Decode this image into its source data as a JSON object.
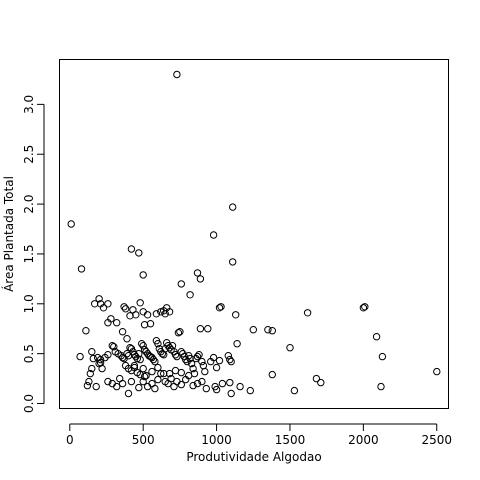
{
  "chart_data": {
    "type": "scatter",
    "title": "",
    "xlabel": "Produtividade Algodao",
    "ylabel": "Área Plantada Total",
    "xlim": [
      -70,
      2580
    ],
    "ylim": [
      -0.05,
      3.45
    ],
    "xticks": [
      0,
      500,
      1000,
      1500,
      2000,
      2500
    ],
    "yticks": [
      0.0,
      0.5,
      1.0,
      1.5,
      2.0,
      2.5,
      3.0
    ],
    "xtick_labels": [
      "0",
      "500",
      "1000",
      "1500",
      "2000",
      "2500"
    ],
    "ytick_labels": [
      "0.0",
      "0.5",
      "1.0",
      "1.5",
      "2.0",
      "2.5",
      "3.0"
    ],
    "grid": false,
    "legend": "none",
    "marker": "open-circle",
    "points": [
      [
        730,
        3.3
      ],
      [
        10,
        1.8
      ],
      [
        1110,
        1.97
      ],
      [
        980,
        1.69
      ],
      [
        420,
        1.55
      ],
      [
        470,
        1.51
      ],
      [
        1110,
        1.42
      ],
      [
        80,
        1.35
      ],
      [
        500,
        1.29
      ],
      [
        870,
        1.31
      ],
      [
        760,
        1.2
      ],
      [
        890,
        1.25
      ],
      [
        200,
        1.05
      ],
      [
        210,
        1.0
      ],
      [
        230,
        0.96
      ],
      [
        260,
        1.0
      ],
      [
        170,
        1.0
      ],
      [
        480,
        1.01
      ],
      [
        430,
        0.94
      ],
      [
        380,
        0.95
      ],
      [
        370,
        0.97
      ],
      [
        320,
        0.81
      ],
      [
        500,
        0.92
      ],
      [
        530,
        0.89
      ],
      [
        590,
        0.9
      ],
      [
        620,
        0.92
      ],
      [
        640,
        0.93
      ],
      [
        660,
        0.96
      ],
      [
        650,
        0.9
      ],
      [
        680,
        0.92
      ],
      [
        410,
        0.88
      ],
      [
        450,
        0.89
      ],
      [
        280,
        0.85
      ],
      [
        260,
        0.81
      ],
      [
        510,
        0.79
      ],
      [
        550,
        0.8
      ],
      [
        820,
        1.09
      ],
      [
        1030,
        0.97
      ],
      [
        1020,
        0.96
      ],
      [
        1130,
        0.89
      ],
      [
        2010,
        0.97
      ],
      [
        2000,
        0.96
      ],
      [
        1620,
        0.91
      ],
      [
        1350,
        0.74
      ],
      [
        1380,
        0.73
      ],
      [
        1250,
        0.74
      ],
      [
        2090,
        0.67
      ],
      [
        2130,
        0.47
      ],
      [
        1500,
        0.56
      ],
      [
        1140,
        0.6
      ],
      [
        110,
        0.73
      ],
      [
        70,
        0.47
      ],
      [
        150,
        0.52
      ],
      [
        160,
        0.45
      ],
      [
        190,
        0.46
      ],
      [
        210,
        0.44
      ],
      [
        210,
        0.41
      ],
      [
        200,
        0.4
      ],
      [
        220,
        0.35
      ],
      [
        240,
        0.46
      ],
      [
        260,
        0.49
      ],
      [
        290,
        0.58
      ],
      [
        310,
        0.52
      ],
      [
        330,
        0.5
      ],
      [
        350,
        0.48
      ],
      [
        360,
        0.46
      ],
      [
        370,
        0.45
      ],
      [
        390,
        0.5
      ],
      [
        400,
        0.48
      ],
      [
        410,
        0.56
      ],
      [
        420,
        0.55
      ],
      [
        430,
        0.52
      ],
      [
        440,
        0.49
      ],
      [
        450,
        0.47
      ],
      [
        460,
        0.45
      ],
      [
        470,
        0.5
      ],
      [
        480,
        0.44
      ],
      [
        490,
        0.6
      ],
      [
        500,
        0.58
      ],
      [
        510,
        0.54
      ],
      [
        520,
        0.52
      ],
      [
        530,
        0.5
      ],
      [
        540,
        0.48
      ],
      [
        550,
        0.47
      ],
      [
        560,
        0.46
      ],
      [
        570,
        0.44
      ],
      [
        580,
        0.42
      ],
      [
        590,
        0.63
      ],
      [
        600,
        0.6
      ],
      [
        610,
        0.55
      ],
      [
        620,
        0.52
      ],
      [
        630,
        0.5
      ],
      [
        640,
        0.49
      ],
      [
        650,
        0.55
      ],
      [
        660,
        0.61
      ],
      [
        670,
        0.58
      ],
      [
        680,
        0.56
      ],
      [
        690,
        0.54
      ],
      [
        700,
        0.58
      ],
      [
        710,
        0.52
      ],
      [
        720,
        0.49
      ],
      [
        730,
        0.47
      ],
      [
        740,
        0.71
      ],
      [
        750,
        0.72
      ],
      [
        760,
        0.52
      ],
      [
        770,
        0.5
      ],
      [
        780,
        0.47
      ],
      [
        790,
        0.44
      ],
      [
        800,
        0.42
      ],
      [
        810,
        0.48
      ],
      [
        820,
        0.45
      ],
      [
        830,
        0.4
      ],
      [
        840,
        0.35
      ],
      [
        850,
        0.3
      ],
      [
        860,
        0.45
      ],
      [
        870,
        0.47
      ],
      [
        880,
        0.49
      ],
      [
        890,
        0.75
      ],
      [
        900,
        0.42
      ],
      [
        910,
        0.38
      ],
      [
        920,
        0.32
      ],
      [
        940,
        0.75
      ],
      [
        960,
        0.42
      ],
      [
        980,
        0.46
      ],
      [
        1000,
        0.36
      ],
      [
        1020,
        0.43
      ],
      [
        1080,
        0.48
      ],
      [
        1090,
        0.44
      ],
      [
        1100,
        0.42
      ],
      [
        390,
        0.65
      ],
      [
        360,
        0.72
      ],
      [
        300,
        0.57
      ],
      [
        380,
        0.38
      ],
      [
        400,
        0.35
      ],
      [
        420,
        0.33
      ],
      [
        440,
        0.38
      ],
      [
        460,
        0.31
      ],
      [
        480,
        0.29
      ],
      [
        500,
        0.35
      ],
      [
        520,
        0.28
      ],
      [
        560,
        0.32
      ],
      [
        600,
        0.36
      ],
      [
        640,
        0.3
      ],
      [
        680,
        0.3
      ],
      [
        720,
        0.33
      ],
      [
        760,
        0.31
      ],
      [
        810,
        0.28
      ],
      [
        130,
        0.22
      ],
      [
        120,
        0.18
      ],
      [
        140,
        0.3
      ],
      [
        150,
        0.35
      ],
      [
        180,
        0.17
      ],
      [
        260,
        0.22
      ],
      [
        290,
        0.2
      ],
      [
        320,
        0.17
      ],
      [
        340,
        0.25
      ],
      [
        360,
        0.2
      ],
      [
        400,
        0.1
      ],
      [
        420,
        0.22
      ],
      [
        440,
        0.36
      ],
      [
        470,
        0.16
      ],
      [
        500,
        0.22
      ],
      [
        510,
        0.27
      ],
      [
        530,
        0.17
      ],
      [
        560,
        0.2
      ],
      [
        580,
        0.15
      ],
      [
        600,
        0.24
      ],
      [
        620,
        0.3
      ],
      [
        650,
        0.22
      ],
      [
        670,
        0.2
      ],
      [
        690,
        0.25
      ],
      [
        710,
        0.17
      ],
      [
        730,
        0.22
      ],
      [
        760,
        0.19
      ],
      [
        790,
        0.24
      ],
      [
        840,
        0.18
      ],
      [
        870,
        0.2
      ],
      [
        900,
        0.22
      ],
      [
        930,
        0.15
      ],
      [
        990,
        0.17
      ],
      [
        1000,
        0.14
      ],
      [
        1040,
        0.2
      ],
      [
        1090,
        0.21
      ],
      [
        1100,
        0.1
      ],
      [
        1160,
        0.17
      ],
      [
        1230,
        0.13
      ],
      [
        1380,
        0.29
      ],
      [
        1530,
        0.13
      ],
      [
        1680,
        0.25
      ],
      [
        1710,
        0.21
      ],
      [
        2120,
        0.17
      ],
      [
        2500,
        0.32
      ]
    ]
  }
}
